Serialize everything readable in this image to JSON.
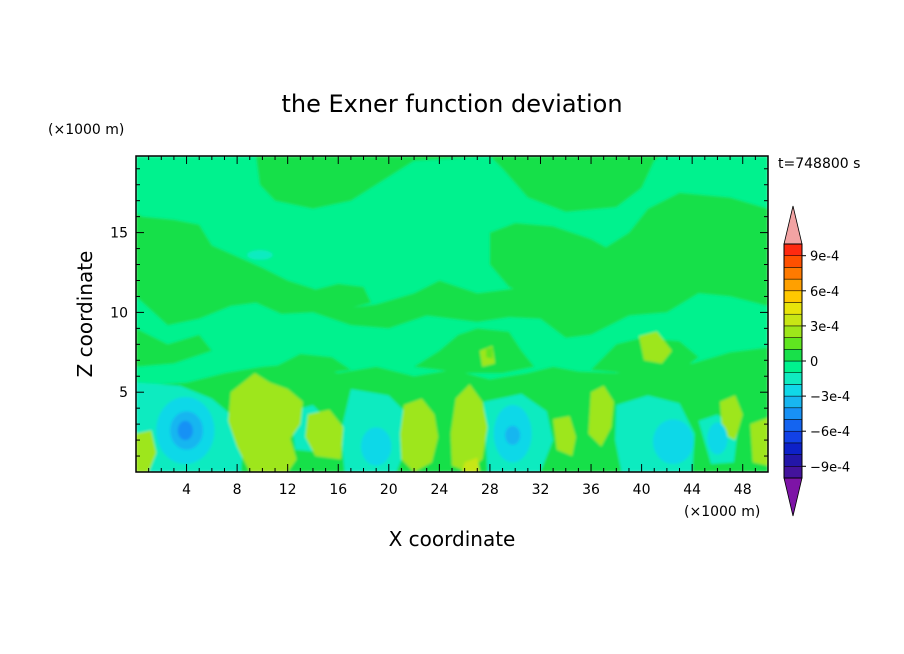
{
  "chart_data": {
    "type": "heatmap",
    "title": "the Exner function deviation",
    "xlabel": "X coordinate",
    "ylabel": "Z coordinate",
    "x_unit": "(×1000 m)",
    "y_unit": "(×1000 m)",
    "time_label": "t=748800 s",
    "xlim": [
      0,
      50
    ],
    "ylim": [
      0,
      19.8
    ],
    "xticks": [
      4,
      8,
      12,
      16,
      20,
      24,
      28,
      32,
      36,
      40,
      44,
      48
    ],
    "yticks": [
      5,
      10,
      15
    ],
    "colorbar": {
      "levels": [
        -0.0011,
        -0.001,
        -0.0009,
        -0.0008,
        -0.0007,
        -0.0006,
        -0.0005,
        -0.0004,
        -0.0003,
        -0.0002,
        -0.0001,
        0,
        0.0001,
        0.0002,
        0.0003,
        0.0004,
        0.0005,
        0.0006,
        0.0007,
        0.0008,
        0.0009,
        0.001,
        0.0011
      ],
      "tick_labels": [
        "9e-4",
        "6e-4",
        "3e-4",
        "0",
        "−3e-4",
        "−6e-4",
        "−9e-4"
      ],
      "colors": [
        "#7d14a6",
        "#43139c",
        "#2316a8",
        "#0d21c8",
        "#1241e6",
        "#1464f0",
        "#1891f5",
        "#18b6f0",
        "#10d8e8",
        "#10ebc0",
        "#00f28e",
        "#18e04a",
        "#60e620",
        "#9ee61a",
        "#c8e615",
        "#e8e40a",
        "#ffc800",
        "#ffa000",
        "#ff7a00",
        "#ff5000",
        "#ff2a10",
        "#f2a3a3"
      ],
      "extend": "both"
    },
    "regions": [
      {
        "level": 0,
        "desc": "green background (slightly negative deviation)"
      },
      {
        "level": -5e-05,
        "desc": "cyan-green bands in upper layer"
      },
      {
        "level": 0.0001,
        "desc": "yellow-green cells near surface"
      },
      {
        "level": -0.0002,
        "desc": "cyan pockets near surface"
      },
      {
        "level": -0.0004,
        "desc": "blue core near x=4, z=2.5"
      }
    ]
  }
}
